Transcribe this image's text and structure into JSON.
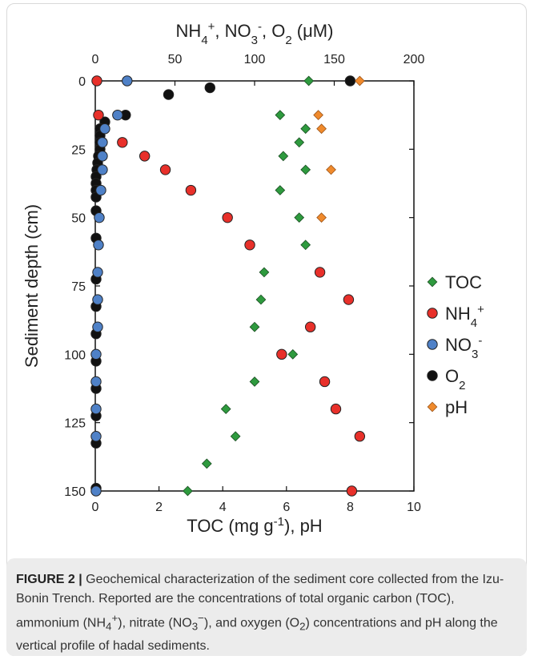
{
  "chart_data": {
    "type": "scatter",
    "top_axis": {
      "label_parts": [
        "NH",
        "4",
        "+",
        ", NO",
        "3",
        "-",
        ", O",
        "2",
        " (μM)"
      ],
      "range": [
        0,
        200
      ],
      "ticks": [
        "0",
        "50",
        "100",
        "150",
        "200"
      ]
    },
    "bottom_axis": {
      "label_parts": [
        "TOC (mg g",
        "-1",
        "), pH"
      ],
      "range": [
        0,
        10
      ],
      "ticks": [
        "0",
        "2",
        "4",
        "6",
        "8",
        "10"
      ]
    },
    "y_axis": {
      "label": "Sediment depth (cm)",
      "range": [
        0,
        150
      ],
      "inverted": true,
      "ticks": [
        "0",
        "25",
        "50",
        "75",
        "100",
        "125",
        "150"
      ]
    },
    "legend_placement": "right",
    "series": [
      {
        "name": "TOC",
        "name_parts": [
          "TOC",
          "",
          ""
        ],
        "axis": "bottom",
        "marker": "diamond",
        "color": "#2e9a3e",
        "points": [
          [
            6.7,
            0
          ],
          [
            5.8,
            12.5
          ],
          [
            6.6,
            17.5
          ],
          [
            6.4,
            22.5
          ],
          [
            5.9,
            27.5
          ],
          [
            6.6,
            32.5
          ],
          [
            5.8,
            40
          ],
          [
            6.4,
            50
          ],
          [
            6.6,
            60
          ],
          [
            5.3,
            70
          ],
          [
            5.2,
            80
          ],
          [
            5.0,
            90
          ],
          [
            6.2,
            100
          ],
          [
            5.0,
            110
          ],
          [
            4.1,
            120
          ],
          [
            4.4,
            130
          ],
          [
            3.5,
            140
          ],
          [
            2.9,
            150
          ]
        ]
      },
      {
        "name": "NH4+",
        "name_parts": [
          "NH",
          "4",
          "+"
        ],
        "axis": "top",
        "marker": "circle",
        "color": "#e8302a",
        "points": [
          [
            1,
            0
          ],
          [
            2,
            12.5
          ],
          [
            17,
            22.5
          ],
          [
            31,
            27.5
          ],
          [
            44,
            32.5
          ],
          [
            60,
            40
          ],
          [
            83,
            50
          ],
          [
            97,
            60
          ],
          [
            141,
            70
          ],
          [
            159,
            80
          ],
          [
            135,
            90
          ],
          [
            117,
            100
          ],
          [
            144,
            110
          ],
          [
            151,
            120
          ],
          [
            166,
            130
          ],
          [
            161,
            150
          ]
        ]
      },
      {
        "name": "NO3-",
        "name_parts": [
          "NO",
          "3",
          "-"
        ],
        "axis": "top",
        "marker": "circle",
        "color": "#4f81c7",
        "points": [
          [
            20,
            0
          ],
          [
            14,
            12.5
          ],
          [
            6,
            17.5
          ],
          [
            4.5,
            22.5
          ],
          [
            4.5,
            27.5
          ],
          [
            4.5,
            32.5
          ],
          [
            3.5,
            40
          ],
          [
            2.5,
            50
          ],
          [
            2,
            60
          ],
          [
            1.5,
            70
          ],
          [
            1.5,
            80
          ],
          [
            1.5,
            90
          ],
          [
            0.5,
            100
          ],
          [
            0.5,
            110
          ],
          [
            0.5,
            120
          ],
          [
            0.5,
            130
          ],
          [
            0.5,
            150
          ]
        ]
      },
      {
        "name": "O2",
        "name_parts": [
          "O",
          "2",
          ""
        ],
        "axis": "top",
        "marker": "circle",
        "color": "#111111",
        "points": [
          [
            160,
            0
          ],
          [
            72,
            2.5
          ],
          [
            46,
            5
          ],
          [
            19,
            12.5
          ],
          [
            6,
            15
          ],
          [
            3,
            17.5
          ],
          [
            3,
            20
          ],
          [
            3,
            22.5
          ],
          [
            3,
            25
          ],
          [
            2,
            27.5
          ],
          [
            1.5,
            30
          ],
          [
            1,
            32.5
          ],
          [
            0.5,
            35
          ],
          [
            0.5,
            37.5
          ],
          [
            0.5,
            40
          ],
          [
            0.5,
            42.5
          ],
          [
            0.5,
            47.5
          ],
          [
            0.5,
            57.5
          ],
          [
            0.5,
            72.5
          ],
          [
            0.5,
            82.5
          ],
          [
            0.5,
            92.5
          ],
          [
            0.5,
            102.5
          ],
          [
            0.5,
            112.5
          ],
          [
            0.5,
            122.5
          ],
          [
            0.5,
            132.5
          ],
          [
            0.5,
            149
          ]
        ]
      },
      {
        "name": "pH",
        "name_parts": [
          "pH",
          "",
          ""
        ],
        "axis": "bottom",
        "marker": "diamond",
        "color": "#f08a2c",
        "points": [
          [
            8.3,
            0
          ],
          [
            7.0,
            12.5
          ],
          [
            7.1,
            17.5
          ],
          [
            7.4,
            32.5
          ],
          [
            7.1,
            50
          ]
        ]
      }
    ]
  },
  "caption": {
    "label": "FIGURE 2 |",
    "text_before_nh4": " Geochemical characterization of the sediment core collected from the Izu-Bonin Trench. Reported are the concentrations of total organic carbon (TOC), ammonium (",
    "nh4": {
      "base": "NH",
      "sub": "4",
      "sup": "+"
    },
    "text_between_1": "), nitrate (",
    "no3": {
      "base": "NO",
      "sub": "3",
      "sup": "−"
    },
    "text_between_2": "), and oxygen (O",
    "o2_sub": "2",
    "text_after": ") concentrations and pH along the vertical profile of hadal sediments."
  }
}
